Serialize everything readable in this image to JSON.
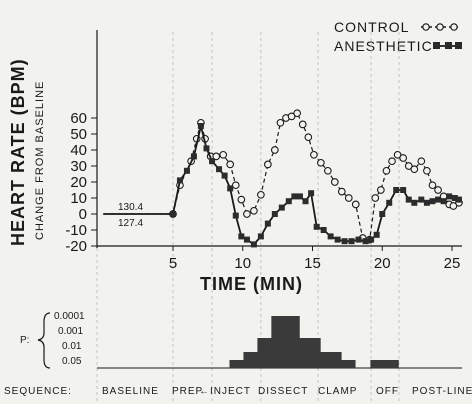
{
  "chart_data": {
    "type": "line",
    "xlabel": "TIME (MIN)",
    "ylabel": "HEART RATE (BPM)",
    "ylabel_sub": "CHANGE FROM BASELINE",
    "xlim": [
      0,
      25.5
    ],
    "ylim": [
      -20,
      65
    ],
    "x_ticks": [
      "5",
      "10",
      "15",
      "20",
      "25"
    ],
    "y_ticks": [
      "-20",
      "-10",
      "0",
      "10",
      "20",
      "30",
      "40",
      "50",
      "60"
    ],
    "baseline_values": [
      "130.4",
      "127.4"
    ],
    "series": [
      {
        "name": "CONTROL",
        "color": "#1a1a1a",
        "style": "dashed-open-circle",
        "points": [
          [
            0,
            0
          ],
          [
            5,
            0
          ],
          [
            5.5,
            18
          ],
          [
            6.3,
            33
          ],
          [
            6.7,
            47
          ],
          [
            7.0,
            57
          ],
          [
            7.3,
            47
          ],
          [
            7.7,
            36
          ],
          [
            8.1,
            36
          ],
          [
            8.6,
            37
          ],
          [
            9.1,
            31
          ],
          [
            9.5,
            18
          ],
          [
            9.9,
            9
          ],
          [
            10.3,
            0
          ],
          [
            10.8,
            2
          ],
          [
            11.3,
            12
          ],
          [
            11.8,
            31
          ],
          [
            12.3,
            40
          ],
          [
            12.7,
            57
          ],
          [
            13.1,
            60
          ],
          [
            13.5,
            61
          ],
          [
            13.9,
            63
          ],
          [
            14.3,
            56
          ],
          [
            14.7,
            48
          ],
          [
            15.1,
            37
          ],
          [
            15.6,
            32
          ],
          [
            16.1,
            27
          ],
          [
            16.6,
            20
          ],
          [
            17.1,
            14
          ],
          [
            17.6,
            10
          ],
          [
            18.1,
            6
          ],
          [
            18.6,
            -15
          ],
          [
            19.1,
            -16
          ],
          [
            19.5,
            10
          ],
          [
            19.9,
            15
          ],
          [
            20.3,
            27
          ],
          [
            20.7,
            33
          ],
          [
            21.1,
            37
          ],
          [
            21.5,
            35
          ],
          [
            21.9,
            30
          ],
          [
            22.3,
            28
          ],
          [
            22.8,
            33
          ],
          [
            23.2,
            27
          ],
          [
            23.6,
            18
          ],
          [
            24.0,
            15
          ],
          [
            24.4,
            11
          ],
          [
            24.8,
            6
          ],
          [
            25.1,
            5
          ],
          [
            25.5,
            7
          ]
        ]
      },
      {
        "name": "ANESTHETIC",
        "color": "#1a1a1a",
        "style": "solid-filled-square",
        "points": [
          [
            0,
            0
          ],
          [
            5,
            0
          ],
          [
            5.5,
            21
          ],
          [
            6.0,
            27
          ],
          [
            6.5,
            36
          ],
          [
            7.0,
            55
          ],
          [
            7.4,
            41
          ],
          [
            7.8,
            33
          ],
          [
            8.3,
            28
          ],
          [
            8.7,
            24
          ],
          [
            9.1,
            16
          ],
          [
            9.5,
            -1
          ],
          [
            9.9,
            -14
          ],
          [
            10.3,
            -16
          ],
          [
            10.8,
            -19
          ],
          [
            11.3,
            -14
          ],
          [
            11.8,
            -6
          ],
          [
            12.3,
            0
          ],
          [
            12.8,
            4
          ],
          [
            13.3,
            8
          ],
          [
            13.7,
            11
          ],
          [
            14.1,
            11
          ],
          [
            14.5,
            8
          ],
          [
            14.9,
            13
          ],
          [
            15.3,
            -8
          ],
          [
            15.8,
            -10
          ],
          [
            16.3,
            -14
          ],
          [
            16.8,
            -16
          ],
          [
            17.3,
            -17
          ],
          [
            17.8,
            -17
          ],
          [
            18.3,
            -16
          ],
          [
            18.8,
            -17
          ],
          [
            19.2,
            -16
          ],
          [
            19.6,
            -13
          ],
          [
            20.0,
            0
          ],
          [
            20.5,
            7
          ],
          [
            21.0,
            15
          ],
          [
            21.5,
            15
          ],
          [
            21.9,
            9
          ],
          [
            22.3,
            7
          ],
          [
            22.8,
            9
          ],
          [
            23.2,
            7
          ],
          [
            23.6,
            8
          ],
          [
            24.0,
            9
          ],
          [
            24.4,
            8
          ],
          [
            24.8,
            11
          ],
          [
            25.2,
            10
          ],
          [
            25.5,
            9
          ]
        ]
      }
    ],
    "significance": {
      "label": "P:",
      "levels": [
        "0.0001",
        "0.001",
        "0.01",
        "0.05"
      ],
      "bars": [
        [
          9.3,
          1
        ],
        [
          9.8,
          1
        ],
        [
          10.3,
          2
        ],
        [
          10.8,
          2
        ],
        [
          11.3,
          3
        ],
        [
          11.8,
          3
        ],
        [
          12.3,
          4
        ],
        [
          12.8,
          4
        ],
        [
          13.3,
          4
        ],
        [
          13.8,
          4
        ],
        [
          14.3,
          3
        ],
        [
          14.8,
          3
        ],
        [
          15.3,
          3
        ],
        [
          15.8,
          2
        ],
        [
          16.3,
          2
        ],
        [
          16.8,
          2
        ],
        [
          17.3,
          1
        ],
        [
          17.8,
          1
        ],
        [
          19.4,
          1
        ],
        [
          19.9,
          1
        ],
        [
          20.4,
          1
        ],
        [
          20.9,
          1
        ]
      ]
    },
    "sequence": [
      "SEQUENCE:",
      "BASELINE",
      "PREP",
      "INJECT",
      "DISSECT",
      "CLAMP",
      "OFF",
      "POST-LINE"
    ]
  }
}
